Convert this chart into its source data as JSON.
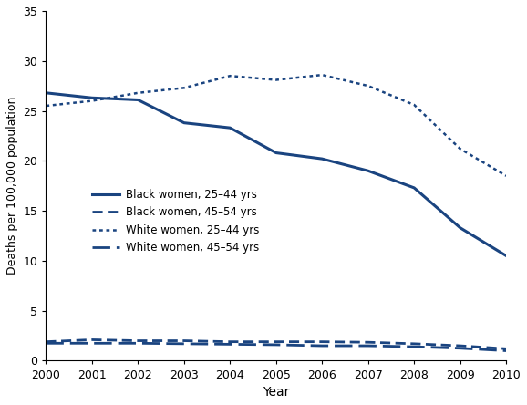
{
  "years": [
    2000,
    2001,
    2002,
    2003,
    2004,
    2005,
    2006,
    2007,
    2008,
    2009,
    2010
  ],
  "black_25_44": [
    26.8,
    26.3,
    26.1,
    23.8,
    23.3,
    20.8,
    20.2,
    19.0,
    17.3,
    13.3,
    10.5
  ],
  "black_45_54": [
    1.9,
    2.1,
    2.0,
    2.0,
    1.9,
    1.9,
    1.9,
    1.85,
    1.7,
    1.5,
    1.2
  ],
  "white_25_44": [
    25.5,
    26.0,
    26.8,
    27.3,
    28.5,
    28.1,
    28.6,
    27.5,
    25.6,
    21.2,
    18.5
  ],
  "white_45_54": [
    1.75,
    1.75,
    1.75,
    1.7,
    1.65,
    1.6,
    1.5,
    1.5,
    1.4,
    1.25,
    1.0
  ],
  "color": "#1a4480",
  "ylim": [
    0,
    35
  ],
  "yticks": [
    0,
    5,
    10,
    15,
    20,
    25,
    30,
    35
  ],
  "xlabel": "Year",
  "ylabel": "Deaths per 100,000 population",
  "legend_labels": [
    "Black women, 25–44 yrs",
    "Black women, 45–54 yrs",
    "White women, 25–44 yrs",
    "White women, 45–54 yrs"
  ]
}
